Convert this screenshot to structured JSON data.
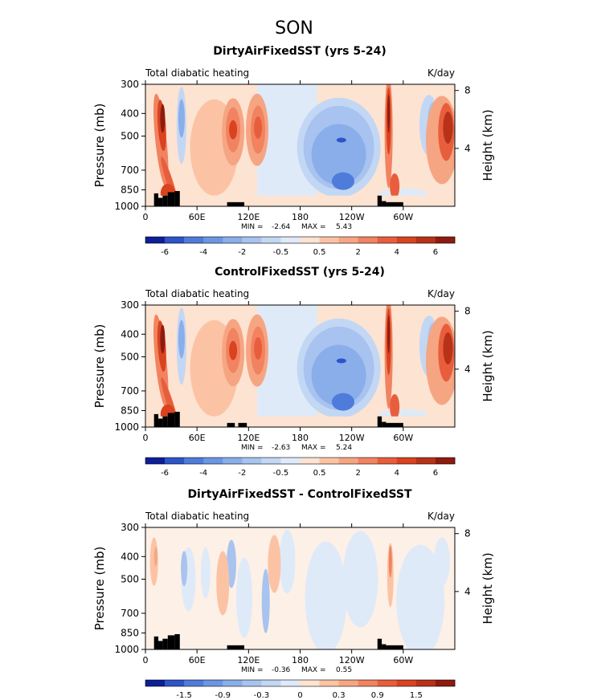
{
  "page": {
    "title": "SON"
  },
  "labels": {
    "ylabel": "Pressure (mb)",
    "ylabel_right": "Height (km)",
    "top_left": "Total diabatic heating",
    "units": "K/day"
  },
  "colors": {
    "heat": [
      "#fde3d1",
      "#fbc3a4",
      "#f6a583",
      "#f18360",
      "#e85e3d",
      "#d9431f",
      "#b73218",
      "#8e1b10"
    ],
    "cool": [
      "#dfeaf9",
      "#c2d7f4",
      "#a8c3ef",
      "#8aaeea",
      "#6c96e3",
      "#4f7cdb",
      "#2d54c8",
      "#0e1e99"
    ],
    "terrain": "#000000"
  },
  "chart_data": [
    {
      "type": "heatmap",
      "title": "DirtyAirFixedSST (yrs 5-24)",
      "xlabel": "",
      "ylabel": "Pressure (mb)",
      "x_ticks": [
        "0",
        "60E",
        "120E",
        "180",
        "120W",
        "60W"
      ],
      "y_ticks": [
        300,
        400,
        500,
        700,
        850,
        1000
      ],
      "y_right_ticks": [
        8,
        4
      ],
      "stats": {
        "min_label": "MIN =",
        "min": "-2.64",
        "max_label": "MAX =",
        "max": "5.43"
      },
      "colorbar_labels": [
        "-6",
        "-4",
        "-2",
        "-0.5",
        "0.5",
        "2",
        "4",
        "6"
      ],
      "field": [
        {
          "lon": 20,
          "p": 420,
          "v": 5.4
        },
        {
          "lon": 30,
          "p": 800,
          "v": 3.2
        },
        {
          "lon": 40,
          "p": 400,
          "v": -1.2
        },
        {
          "lon": 100,
          "p": 450,
          "v": 2.5
        },
        {
          "lon": 130,
          "p": 450,
          "v": 2.8
        },
        {
          "lon": 220,
          "p": 400,
          "v": -1.5
        },
        {
          "lon": 225,
          "p": 780,
          "v": -2.6
        },
        {
          "lon": 290,
          "p": 400,
          "v": 5.0
        },
        {
          "lon": 340,
          "p": 550,
          "v": 3.5
        }
      ]
    },
    {
      "type": "heatmap",
      "title": "ControlFixedSST (yrs 5-24)",
      "xlabel": "",
      "ylabel": "Pressure (mb)",
      "x_ticks": [
        "0",
        "60E",
        "120E",
        "180",
        "120W",
        "60W"
      ],
      "y_ticks": [
        300,
        400,
        500,
        700,
        850,
        1000
      ],
      "y_right_ticks": [
        8,
        4
      ],
      "stats": {
        "min_label": "MIN =",
        "min": "-2.63",
        "max_label": "MAX =",
        "max": "5.24"
      },
      "colorbar_labels": [
        "-6",
        "-4",
        "-2",
        "-0.5",
        "0.5",
        "2",
        "4",
        "6"
      ],
      "field": [
        {
          "lon": 20,
          "p": 420,
          "v": 5.2
        },
        {
          "lon": 30,
          "p": 800,
          "v": 3.1
        },
        {
          "lon": 40,
          "p": 400,
          "v": -1.2
        },
        {
          "lon": 100,
          "p": 450,
          "v": 2.5
        },
        {
          "lon": 130,
          "p": 450,
          "v": 2.8
        },
        {
          "lon": 220,
          "p": 400,
          "v": -1.5
        },
        {
          "lon": 225,
          "p": 780,
          "v": -2.6
        },
        {
          "lon": 290,
          "p": 400,
          "v": 4.9
        },
        {
          "lon": 340,
          "p": 550,
          "v": 3.4
        }
      ]
    },
    {
      "type": "heatmap",
      "title": "DirtyAirFixedSST - ControlFixedSST",
      "xlabel": "",
      "ylabel": "Pressure (mb)",
      "x_ticks": [
        "0",
        "60E",
        "120E",
        "180",
        "120W",
        "60W"
      ],
      "y_ticks": [
        300,
        400,
        500,
        700,
        850,
        1000
      ],
      "y_right_ticks": [
        8,
        4
      ],
      "stats": {
        "min_label": "MIN =",
        "min": "-0.36",
        "max_label": "MAX =",
        "max": "0.55"
      },
      "colorbar_labels": [
        "-1.5",
        "-0.9",
        "-0.3",
        "0",
        "0.3",
        "0.9",
        "1.5"
      ],
      "field": [
        {
          "lon": 10,
          "p": 400,
          "v": 0.4
        },
        {
          "lon": 60,
          "p": 500,
          "v": -0.3
        },
        {
          "lon": 100,
          "p": 450,
          "v": 0.2
        },
        {
          "lon": 180,
          "p": 500,
          "v": -0.1
        },
        {
          "lon": 290,
          "p": 420,
          "v": 0.55
        }
      ]
    }
  ]
}
